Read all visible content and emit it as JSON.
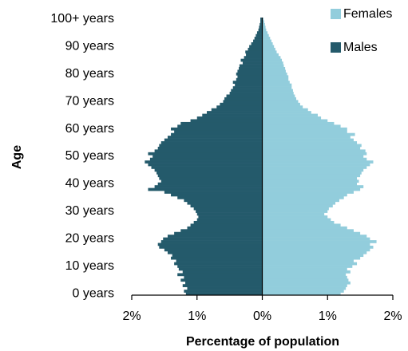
{
  "chart_data": {
    "type": "pyramid",
    "x_label": "Percentage of population",
    "y_label": "Age",
    "categories": [
      "0 years",
      null,
      null,
      null,
      null,
      null,
      null,
      null,
      null,
      null,
      "10 years",
      null,
      null,
      null,
      null,
      null,
      null,
      null,
      null,
      null,
      "20 years",
      null,
      null,
      null,
      null,
      null,
      null,
      null,
      null,
      null,
      "30 years",
      null,
      null,
      null,
      null,
      null,
      null,
      null,
      null,
      null,
      "40 years",
      null,
      null,
      null,
      null,
      null,
      null,
      null,
      null,
      null,
      "50 years",
      null,
      null,
      null,
      null,
      null,
      null,
      null,
      null,
      null,
      "60 years",
      null,
      null,
      null,
      null,
      null,
      null,
      null,
      null,
      null,
      "70 years",
      null,
      null,
      null,
      null,
      null,
      null,
      null,
      null,
      null,
      "80 years",
      null,
      null,
      null,
      null,
      null,
      null,
      null,
      null,
      null,
      "90 years",
      null,
      null,
      null,
      null,
      null,
      null,
      null,
      null,
      null,
      "100+ years"
    ],
    "series": [
      {
        "name": "Females",
        "color": "#92cddc",
        "values": [
          1.2,
          1.25,
          1.28,
          1.3,
          1.35,
          1.32,
          1.3,
          1.28,
          1.35,
          1.3,
          1.38,
          1.45,
          1.4,
          1.5,
          1.55,
          1.6,
          1.65,
          1.7,
          1.65,
          1.75,
          1.65,
          1.6,
          1.5,
          1.4,
          1.3,
          1.2,
          1.1,
          1.05,
          1.0,
          0.95,
          1.0,
          1.02,
          1.08,
          1.12,
          1.18,
          1.25,
          1.3,
          1.4,
          1.5,
          1.55,
          1.45,
          1.48,
          1.45,
          1.5,
          1.52,
          1.55,
          1.6,
          1.65,
          1.7,
          1.6,
          1.55,
          1.6,
          1.58,
          1.5,
          1.52,
          1.45,
          1.4,
          1.35,
          1.42,
          1.3,
          1.3,
          1.2,
          1.1,
          1.0,
          0.9,
          0.85,
          0.75,
          0.7,
          0.62,
          0.58,
          0.55,
          0.52,
          0.5,
          0.48,
          0.47,
          0.45,
          0.45,
          0.42,
          0.4,
          0.4,
          0.38,
          0.36,
          0.35,
          0.33,
          0.32,
          0.3,
          0.28,
          0.25,
          0.22,
          0.2,
          0.18,
          0.16,
          0.14,
          0.12,
          0.1,
          0.08,
          0.06,
          0.05,
          0.04,
          0.03,
          0.02
        ]
      },
      {
        "name": "Males",
        "color": "#245a6b",
        "values": [
          -1.17,
          -1.2,
          -1.15,
          -1.22,
          -1.18,
          -1.25,
          -1.2,
          -1.3,
          -1.22,
          -1.28,
          -1.3,
          -1.35,
          -1.32,
          -1.4,
          -1.38,
          -1.45,
          -1.5,
          -1.58,
          -1.6,
          -1.55,
          -1.52,
          -1.45,
          -1.35,
          -1.25,
          -1.15,
          -1.1,
          -1.05,
          -1.0,
          -0.98,
          -1.0,
          -1.02,
          -1.05,
          -1.1,
          -1.15,
          -1.2,
          -1.3,
          -1.4,
          -1.5,
          -1.75,
          -1.65,
          -1.6,
          -1.55,
          -1.58,
          -1.6,
          -1.62,
          -1.65,
          -1.7,
          -1.75,
          -1.8,
          -1.72,
          -1.68,
          -1.75,
          -1.65,
          -1.6,
          -1.58,
          -1.55,
          -1.5,
          -1.45,
          -1.4,
          -1.35,
          -1.4,
          -1.3,
          -1.25,
          -1.1,
          -1.0,
          -0.92,
          -0.85,
          -0.78,
          -0.7,
          -0.65,
          -0.6,
          -0.58,
          -0.55,
          -0.5,
          -0.48,
          -0.45,
          -0.42,
          -0.45,
          -0.4,
          -0.38,
          -0.4,
          -0.38,
          -0.36,
          -0.35,
          -0.3,
          -0.33,
          -0.28,
          -0.25,
          -0.26,
          -0.22,
          -0.2,
          -0.17,
          -0.14,
          -0.12,
          -0.1,
          -0.08,
          -0.06,
          -0.05,
          -0.04,
          -0.03,
          -0.03
        ]
      }
    ],
    "xlim": [
      -2,
      2
    ],
    "xticks": [
      {
        "value": -2,
        "label": "2%"
      },
      {
        "value": -1,
        "label": "1%"
      },
      {
        "value": 0,
        "label": "0%"
      },
      {
        "value": 1,
        "label": "1%"
      },
      {
        "value": 2,
        "label": "2%"
      }
    ],
    "legend": "upper right"
  }
}
